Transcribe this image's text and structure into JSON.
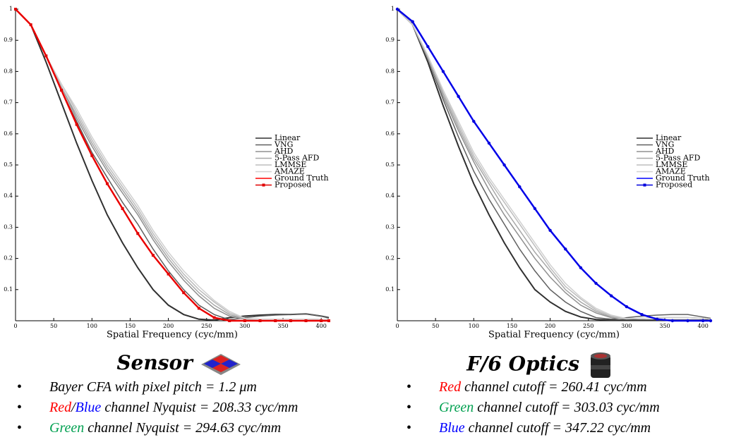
{
  "chart_data": [
    {
      "type": "line",
      "xlabel": "Spatial Frequency (cyc/mm)",
      "x": [
        0,
        20,
        40,
        60,
        80,
        100,
        120,
        140,
        160,
        180,
        200,
        220,
        240,
        260,
        280,
        300,
        320,
        340,
        360,
        380,
        400,
        410
      ],
      "xlim": [
        0,
        410
      ],
      "ylim": [
        0,
        1
      ],
      "xticks": [
        0,
        50,
        100,
        150,
        200,
        250,
        300,
        350,
        400
      ],
      "yticks": [
        0.1,
        0.2,
        0.3,
        0.4,
        0.5,
        0.6,
        0.7,
        0.8,
        0.9,
        1
      ],
      "series": [
        {
          "name": "Linear",
          "color": "#303030",
          "values": [
            1,
            0.95,
            0.83,
            0.7,
            0.57,
            0.45,
            0.34,
            0.25,
            0.17,
            0.1,
            0.05,
            0.02,
            0.005,
            0.002,
            0.01,
            0.015,
            0.018,
            0.02,
            0.02,
            0.022,
            0.015,
            0.01
          ]
        },
        {
          "name": "VNG",
          "color": "#606060",
          "values": [
            1,
            0.95,
            0.85,
            0.74,
            0.64,
            0.54,
            0.46,
            0.38,
            0.31,
            0.23,
            0.16,
            0.1,
            0.05,
            0.02,
            0.003,
            0.01,
            0.015,
            0.018,
            0.02,
            0.022,
            0.015,
            0.008
          ]
        },
        {
          "name": "AHD",
          "color": "#909090",
          "values": [
            1,
            0.95,
            0.85,
            0.75,
            0.65,
            0.56,
            0.48,
            0.41,
            0.34,
            0.26,
            0.19,
            0.13,
            0.08,
            0.04,
            0.015,
            0.005,
            0.005,
            0.005,
            0.005,
            0.005,
            0.004,
            0.003
          ]
        },
        {
          "name": "5-Pass AFD",
          "color": "#a8a8a8",
          "values": [
            1,
            0.95,
            0.85,
            0.75,
            0.66,
            0.57,
            0.49,
            0.42,
            0.35,
            0.27,
            0.2,
            0.14,
            0.09,
            0.05,
            0.02,
            0.006,
            0.005,
            0.005,
            0.005,
            0.005,
            0.004,
            0.003
          ]
        },
        {
          "name": "LMMSE",
          "color": "#bdbdbd",
          "values": [
            1,
            0.95,
            0.85,
            0.76,
            0.67,
            0.58,
            0.5,
            0.43,
            0.36,
            0.28,
            0.21,
            0.15,
            0.1,
            0.06,
            0.025,
            0.007,
            0.005,
            0.005,
            0.005,
            0.005,
            0.004,
            0.003
          ]
        },
        {
          "name": "AMAZE",
          "color": "#d0d0d0",
          "values": [
            1,
            0.95,
            0.85,
            0.76,
            0.68,
            0.59,
            0.51,
            0.44,
            0.37,
            0.29,
            0.22,
            0.16,
            0.11,
            0.065,
            0.03,
            0.008,
            0.005,
            0.005,
            0.005,
            0.005,
            0.004,
            0.003
          ]
        },
        {
          "name": "Ground Truth",
          "color": "#ff0000",
          "values": [
            1,
            0.95,
            0.85,
            0.74,
            0.63,
            0.53,
            0.44,
            0.36,
            0.28,
            0.21,
            0.15,
            0.09,
            0.04,
            0.01,
            0,
            0,
            0,
            0,
            0,
            0,
            0,
            0
          ]
        },
        {
          "name": "Proposed",
          "color": "#e00000",
          "marker": "square",
          "values": [
            1,
            0.95,
            0.85,
            0.74,
            0.63,
            0.53,
            0.44,
            0.36,
            0.28,
            0.21,
            0.15,
            0.09,
            0.04,
            0.01,
            0,
            0,
            0,
            0,
            0,
            0,
            0,
            0
          ]
        }
      ]
    },
    {
      "type": "line",
      "xlabel": "Spatial Frequency (cyc/mm)",
      "x": [
        0,
        20,
        40,
        60,
        80,
        100,
        120,
        140,
        160,
        180,
        200,
        220,
        240,
        260,
        280,
        300,
        320,
        340,
        360,
        380,
        400,
        410
      ],
      "xlim": [
        0,
        410
      ],
      "ylim": [
        0,
        1
      ],
      "xticks": [
        0,
        50,
        100,
        150,
        200,
        250,
        300,
        350,
        400
      ],
      "yticks": [
        0.1,
        0.2,
        0.3,
        0.4,
        0.5,
        0.6,
        0.7,
        0.8,
        0.9,
        1
      ],
      "series": [
        {
          "name": "Linear",
          "color": "#303030",
          "values": [
            1,
            0.95,
            0.83,
            0.69,
            0.56,
            0.44,
            0.34,
            0.25,
            0.17,
            0.1,
            0.06,
            0.03,
            0.012,
            0.004,
            0.002,
            0.002,
            0.002,
            0.002,
            0.002,
            0.002,
            0.002,
            0.002
          ]
        },
        {
          "name": "VNG",
          "color": "#606060",
          "values": [
            1,
            0.95,
            0.84,
            0.71,
            0.59,
            0.48,
            0.39,
            0.31,
            0.23,
            0.16,
            0.1,
            0.06,
            0.03,
            0.01,
            0.005,
            0.01,
            0.015,
            0.018,
            0.02,
            0.02,
            0.012,
            0.008
          ]
        },
        {
          "name": "AHD",
          "color": "#909090",
          "values": [
            1,
            0.95,
            0.84,
            0.72,
            0.61,
            0.51,
            0.42,
            0.34,
            0.27,
            0.2,
            0.14,
            0.09,
            0.05,
            0.025,
            0.01,
            0.005,
            0.008,
            0.01,
            0.01,
            0.01,
            0.008,
            0.005
          ]
        },
        {
          "name": "5-Pass AFD",
          "color": "#a8a8a8",
          "values": [
            1,
            0.95,
            0.85,
            0.73,
            0.62,
            0.52,
            0.44,
            0.36,
            0.29,
            0.22,
            0.16,
            0.1,
            0.06,
            0.03,
            0.012,
            0.006,
            0.008,
            0.01,
            0.01,
            0.01,
            0.008,
            0.005
          ]
        },
        {
          "name": "LMMSE",
          "color": "#bdbdbd",
          "values": [
            1,
            0.95,
            0.85,
            0.74,
            0.63,
            0.53,
            0.45,
            0.38,
            0.31,
            0.24,
            0.17,
            0.11,
            0.07,
            0.035,
            0.015,
            0.006,
            0.008,
            0.01,
            0.01,
            0.01,
            0.008,
            0.005
          ]
        },
        {
          "name": "AMAZE",
          "color": "#d0d0d0",
          "values": [
            1,
            0.95,
            0.85,
            0.74,
            0.64,
            0.54,
            0.46,
            0.39,
            0.32,
            0.25,
            0.18,
            0.12,
            0.075,
            0.04,
            0.018,
            0.007,
            0.008,
            0.01,
            0.01,
            0.01,
            0.008,
            0.005
          ]
        },
        {
          "name": "Ground Truth",
          "color": "#0000ff",
          "values": [
            1,
            0.96,
            0.88,
            0.8,
            0.72,
            0.64,
            0.57,
            0.5,
            0.43,
            0.36,
            0.29,
            0.23,
            0.17,
            0.12,
            0.08,
            0.045,
            0.02,
            0.005,
            0,
            0,
            0,
            0
          ]
        },
        {
          "name": "Proposed",
          "color": "#0000dd",
          "marker": "circle",
          "values": [
            1,
            0.96,
            0.88,
            0.8,
            0.72,
            0.64,
            0.57,
            0.5,
            0.43,
            0.36,
            0.29,
            0.23,
            0.17,
            0.12,
            0.08,
            0.045,
            0.02,
            0.005,
            0,
            0,
            0,
            0
          ]
        }
      ]
    }
  ],
  "panels": [
    {
      "heading": "Sensor",
      "bullets": [
        [
          {
            "text": "Bayer CFA with  pixel pitch = 1.2 μm"
          }
        ],
        [
          {
            "text": "Red",
            "color": "#ff0000"
          },
          {
            "text": "/"
          },
          {
            "text": "Blue",
            "color": "#0000ff"
          },
          {
            "text": " channel Nyquist = 208.33 cyc/mm"
          }
        ],
        [
          {
            "text": "Green",
            "color": "#00a050"
          },
          {
            "text": " channel Nyquist = 294.63 cyc/mm"
          }
        ]
      ]
    },
    {
      "heading": "F/6 Optics",
      "bullets": [
        [
          {
            "text": "Red",
            "color": "#ff0000"
          },
          {
            "text": " channel cutoff = 260.41 cyc/mm"
          }
        ],
        [
          {
            "text": "Green",
            "color": "#00a050"
          },
          {
            "text": " channel cutoff = 303.03 cyc/mm"
          }
        ],
        [
          {
            "text": "Blue",
            "color": "#0000ff"
          },
          {
            "text": " channel cutoff = 347.22 cyc/mm"
          }
        ]
      ]
    }
  ]
}
